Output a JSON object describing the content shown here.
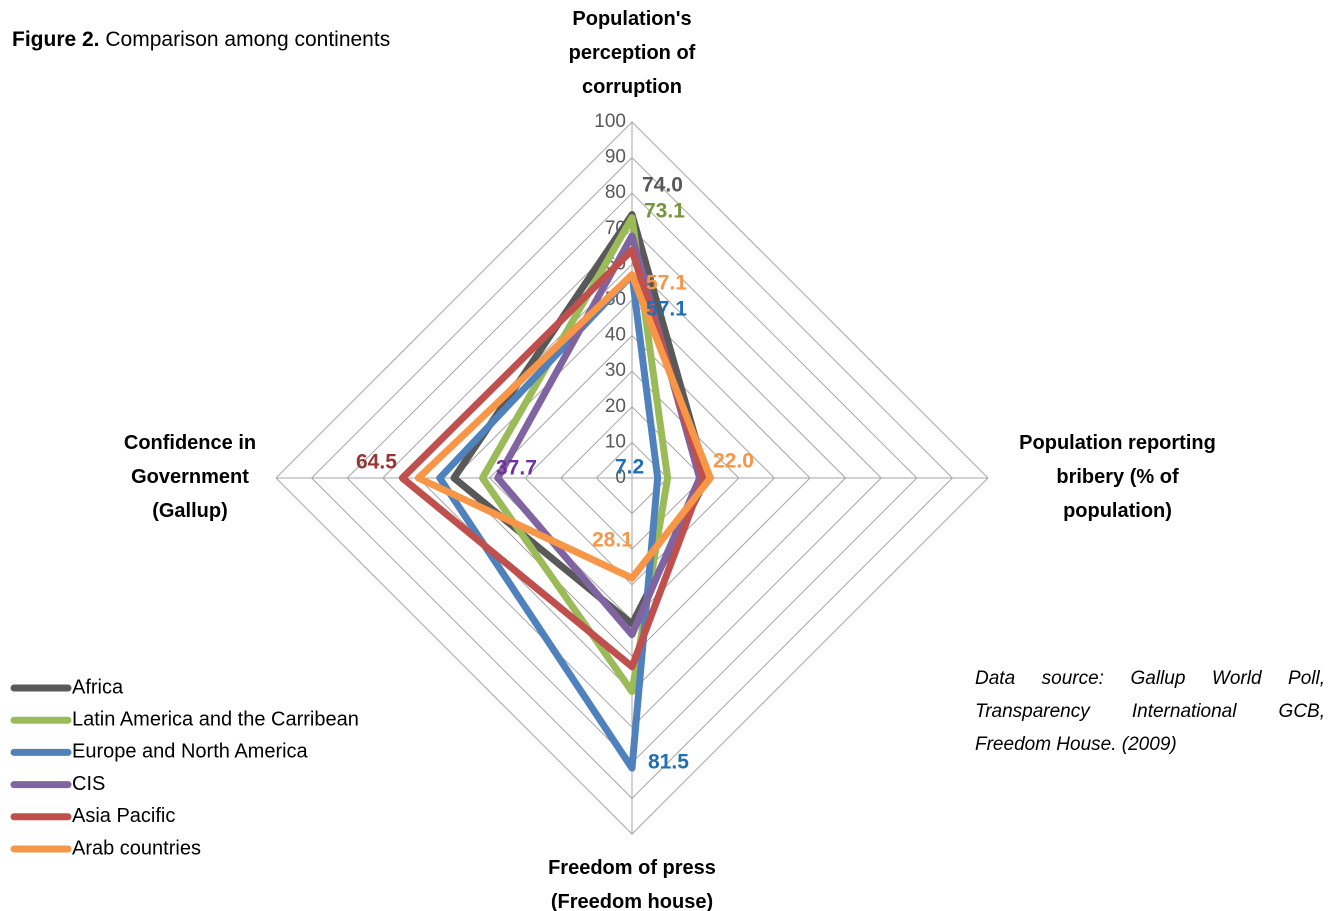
{
  "chart_data": {
    "type": "radar",
    "title_label": "Figure 2.",
    "title": "Comparison among continents",
    "categories": [
      "Population's perception of corruption",
      "Population reporting bribery (% of population)",
      "Freedom of press (Freedom house)",
      "Confidence in Government (Gallup)"
    ],
    "rlim": [
      0,
      100
    ],
    "rticks": [
      0,
      10,
      20,
      30,
      40,
      50,
      60,
      70,
      80,
      90,
      100
    ],
    "grid": true,
    "legend": "bottom-left",
    "series": [
      {
        "name": "Africa",
        "color": "#595959",
        "label_color": "#595959",
        "values": [
          74.0,
          21,
          41,
          50
        ],
        "value_labels": [
          "74.0",
          null,
          null,
          null
        ]
      },
      {
        "name": "Latin America and the Carribean",
        "color": "#9bbb59",
        "label_color": "#77933c",
        "values": [
          73.1,
          10,
          60,
          42
        ],
        "value_labels": [
          "73.1",
          null,
          null,
          null
        ]
      },
      {
        "name": "Europe and North America",
        "color": "#4f81bd",
        "label_color": "#1f6fb5",
        "values": [
          57.1,
          7.2,
          81.5,
          54
        ],
        "value_labels": [
          "57.1",
          "7.2",
          "81.5",
          null
        ]
      },
      {
        "name": "CIS",
        "color": "#8064a2",
        "label_color": "#7030a0",
        "values": [
          68,
          19,
          44,
          37.7
        ],
        "value_labels": [
          null,
          null,
          null,
          "37.7"
        ]
      },
      {
        "name": "Asia Pacific",
        "color": "#c0504d",
        "label_color": "#953735",
        "values": [
          64,
          20,
          53,
          64.5
        ],
        "value_labels": [
          null,
          null,
          null,
          "64.5"
        ]
      },
      {
        "name": "Arab countries",
        "color": "#f79646",
        "label_color": "#f79646",
        "values": [
          57.1,
          22.0,
          28.1,
          60
        ],
        "value_labels": [
          "57.1",
          "22.0",
          "28.1",
          null
        ]
      }
    ],
    "source_note": "Data source: Gallup World Poll, Transparency International GCB, Freedom House. (2009)"
  }
}
